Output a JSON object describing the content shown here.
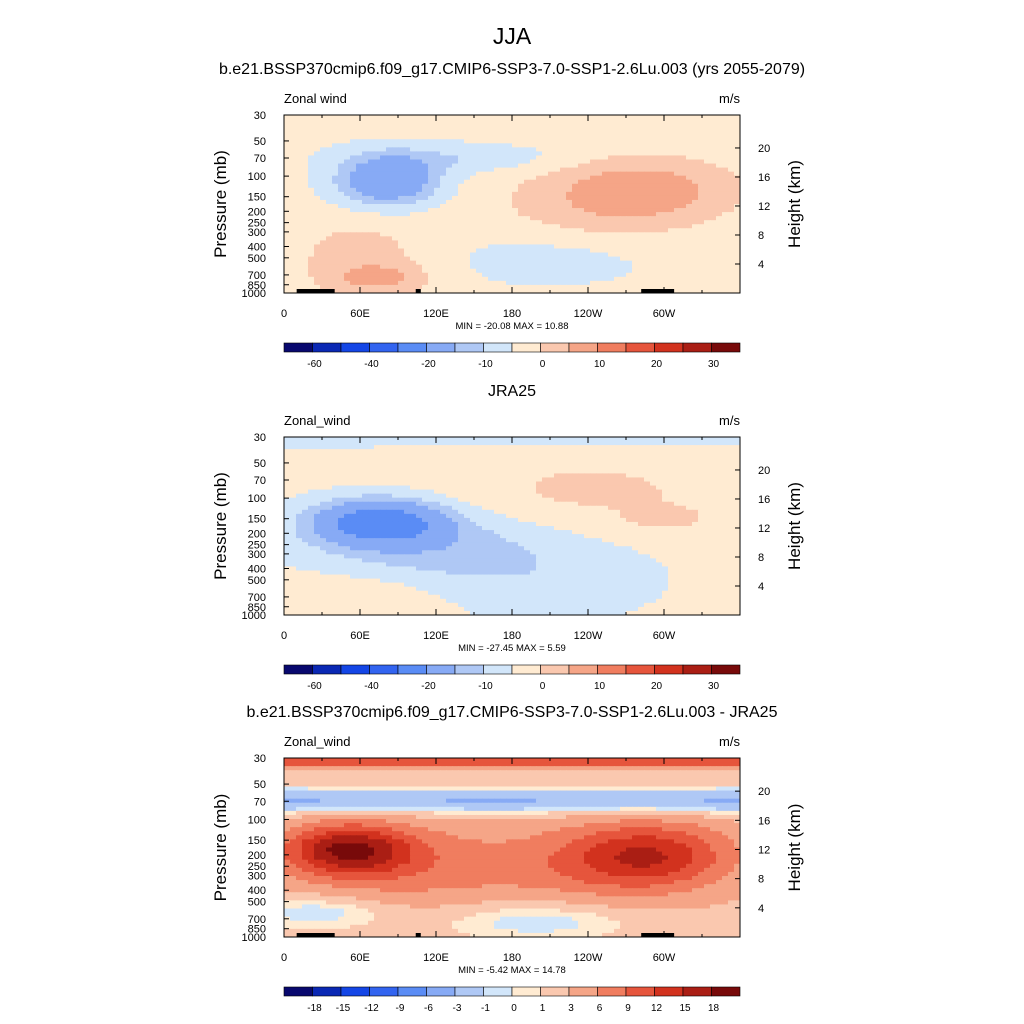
{
  "figure": {
    "title": "JJA"
  },
  "colors": {
    "levels": [
      "#08086e",
      "#0a28b4",
      "#1446e6",
      "#3264f0",
      "#5a8cf5",
      "#87aaf5",
      "#afc8f5",
      "#d2e6fa",
      "#ffebd2",
      "#fac8af",
      "#f5a587",
      "#f07d5f",
      "#e6553c",
      "#d2321e",
      "#aa1e14",
      "#780a0a"
    ],
    "land": "#000000",
    "frame": "#000000"
  },
  "chart_data": [
    {
      "type": "heatmap",
      "title": "b.e21.BSSP370cmip6.f09_g17.CMIP6-SSP3-7.0-SSP1-2.6Lu.003 (yrs 2055-2079)",
      "left_label": "Zonal wind",
      "right_label": "m/s",
      "ylabel": "Pressure (mb)",
      "ylabel_right": "Height (km)",
      "x_ticks": [
        "0",
        "60E",
        "120E",
        "180",
        "120W",
        "60W"
      ],
      "x_tick_values": [
        0,
        60,
        120,
        180,
        240,
        300
      ],
      "xlim": [
        0,
        360
      ],
      "y_ticks": [
        "30",
        "50",
        "70",
        "100",
        "150",
        "200",
        "250",
        "300",
        "400",
        "500",
        "700",
        "850",
        "1000"
      ],
      "y_tick_values": [
        30,
        50,
        70,
        100,
        150,
        200,
        250,
        300,
        400,
        500,
        700,
        850,
        1000
      ],
      "ylim": [
        30,
        1000
      ],
      "y_scale": "log",
      "height_ticks": [
        "20",
        "16",
        "12",
        "8",
        "4"
      ],
      "height_tick_values": [
        20,
        16,
        12,
        8,
        4
      ],
      "min_max_text": "MIN = -20.08  MAX =  10.88",
      "colorbar_labels": [
        "-60",
        "-40",
        "-20",
        "-10",
        "0",
        "10",
        "20",
        "30"
      ],
      "colorbar_label_slots": [
        1,
        3,
        5,
        7,
        9,
        11,
        13,
        15
      ],
      "min": -20.08,
      "max": 10.88,
      "field": [
        {
          "lon": 0,
          "p": 30,
          "value": 1,
          "spread_lon": 360,
          "spread_lp": 0.1,
          "note": ""
        },
        {
          "lon": 82,
          "p": 110,
          "value": -20,
          "spread_lon": 28,
          "spread_lp": 0.35
        },
        {
          "lon": 140,
          "p": 70,
          "value": -5,
          "spread_lon": 60,
          "spread_lp": 0.2
        },
        {
          "lon": 60,
          "p": 500,
          "value": 6,
          "spread_lon": 40,
          "spread_lp": 0.6
        },
        {
          "lon": 75,
          "p": 750,
          "value": 8,
          "spread_lon": 25,
          "spread_lp": 0.2
        },
        {
          "lon": 285,
          "p": 130,
          "value": 10.88,
          "spread_lon": 50,
          "spread_lp": 0.45
        },
        {
          "lon": 240,
          "p": 200,
          "value": 5,
          "spread_lon": 60,
          "spread_lp": 0.6
        },
        {
          "lon": 210,
          "p": 500,
          "value": -4,
          "spread_lon": 60,
          "spread_lp": 0.4
        }
      ],
      "land_segments": [
        [
          10,
          40
        ],
        [
          104,
          108
        ],
        [
          282,
          308
        ]
      ]
    },
    {
      "type": "heatmap",
      "title": "JRA25",
      "left_label": "Zonal_wind",
      "right_label": "m/s",
      "ylabel": "Pressure (mb)",
      "ylabel_right": "Height (km)",
      "x_ticks": [
        "0",
        "60E",
        "120E",
        "180",
        "120W",
        "60W"
      ],
      "x_tick_values": [
        0,
        60,
        120,
        180,
        240,
        300
      ],
      "xlim": [
        0,
        360
      ],
      "y_ticks": [
        "30",
        "50",
        "70",
        "100",
        "150",
        "200",
        "250",
        "300",
        "400",
        "500",
        "700",
        "850",
        "1000"
      ],
      "y_tick_values": [
        30,
        50,
        70,
        100,
        150,
        200,
        250,
        300,
        400,
        500,
        700,
        850,
        1000
      ],
      "ylim": [
        30,
        1000
      ],
      "y_scale": "log",
      "height_ticks": [
        "20",
        "16",
        "12",
        "8",
        "4"
      ],
      "height_tick_values": [
        20,
        16,
        12,
        8,
        4
      ],
      "min_max_text": "MIN = -27.45  MAX =   5.59",
      "colorbar_labels": [
        "-60",
        "-40",
        "-20",
        "-10",
        "0",
        "10",
        "20",
        "30"
      ],
      "colorbar_label_slots": [
        1,
        3,
        5,
        7,
        9,
        11,
        13,
        15
      ],
      "min": -27.45,
      "max": 5.59,
      "field": [
        {
          "lon": 0,
          "p": 30,
          "value": -6,
          "spread_lon": 360,
          "spread_lp": 0.12
        },
        {
          "lon": 75,
          "p": 160,
          "value": -27.45,
          "spread_lon": 35,
          "spread_lp": 0.3
        },
        {
          "lon": 110,
          "p": 250,
          "value": -8,
          "spread_lon": 70,
          "spread_lp": 0.5
        },
        {
          "lon": 240,
          "p": 90,
          "value": 5,
          "spread_lon": 80,
          "spread_lp": 0.55
        },
        {
          "lon": 300,
          "p": 150,
          "value": 5.59,
          "spread_lon": 20,
          "spread_lp": 0.15
        },
        {
          "lon": 200,
          "p": 500,
          "value": -4,
          "spread_lon": 70,
          "spread_lp": 0.6
        },
        {
          "lon": 60,
          "p": 700,
          "value": 4,
          "spread_lon": 50,
          "spread_lp": 0.35
        }
      ],
      "land_segments": []
    },
    {
      "type": "heatmap",
      "title": "b.e21.BSSP370cmip6.f09_g17.CMIP6-SSP3-7.0-SSP1-2.6Lu.003 - JRA25",
      "left_label": "Zonal_wind",
      "right_label": "m/s",
      "ylabel": "Pressure (mb)",
      "ylabel_right": "Height (km)",
      "x_ticks": [
        "0",
        "60E",
        "120E",
        "180",
        "120W",
        "60W"
      ],
      "x_tick_values": [
        0,
        60,
        120,
        180,
        240,
        300
      ],
      "xlim": [
        0,
        360
      ],
      "y_ticks": [
        "30",
        "50",
        "70",
        "100",
        "150",
        "200",
        "250",
        "300",
        "400",
        "500",
        "700",
        "850",
        "1000"
      ],
      "y_tick_values": [
        30,
        50,
        70,
        100,
        150,
        200,
        250,
        300,
        400,
        500,
        700,
        850,
        1000
      ],
      "ylim": [
        30,
        1000
      ],
      "y_scale": "log",
      "height_ticks": [
        "20",
        "16",
        "12",
        "8",
        "4"
      ],
      "height_tick_values": [
        20,
        16,
        12,
        8,
        4
      ],
      "min_max_text": "MIN =  -5.42  MAX =  14.78",
      "colorbar_labels": [
        "-18",
        "-15",
        "-12",
        "-9",
        "-6",
        "-3",
        "-1",
        "0",
        "1",
        "3",
        "6",
        "9",
        "12",
        "15",
        "18"
      ],
      "colorbar_label_slots": [
        1,
        2,
        3,
        4,
        5,
        6,
        7,
        8,
        9,
        10,
        11,
        12,
        13,
        14,
        15
      ],
      "min": -5.42,
      "max": 14.78,
      "field": [
        {
          "lon": 0,
          "p": 32,
          "value": 9,
          "spread_lon": 360,
          "spread_lp": 0.1
        },
        {
          "lon": 0,
          "p": 70,
          "value": -5,
          "spread_lon": 360,
          "spread_lp": 0.18
        },
        {
          "lon": 50,
          "p": 180,
          "value": 14.78,
          "spread_lon": 35,
          "spread_lp": 0.35
        },
        {
          "lon": 100,
          "p": 250,
          "value": 6,
          "spread_lon": 70,
          "spread_lp": 0.6
        },
        {
          "lon": 290,
          "p": 200,
          "value": 11,
          "spread_lon": 45,
          "spread_lp": 0.45
        },
        {
          "lon": 250,
          "p": 250,
          "value": 5,
          "spread_lon": 60,
          "spread_lp": 0.6
        },
        {
          "lon": 200,
          "p": 700,
          "value": -3,
          "spread_lon": 60,
          "spread_lp": 0.3
        },
        {
          "lon": 30,
          "p": 600,
          "value": -3,
          "spread_lon": 40,
          "spread_lp": 0.25
        }
      ],
      "colorbar_levels_diff": true,
      "land_segments": [
        [
          10,
          40
        ],
        [
          104,
          108
        ],
        [
          282,
          308
        ]
      ]
    }
  ]
}
